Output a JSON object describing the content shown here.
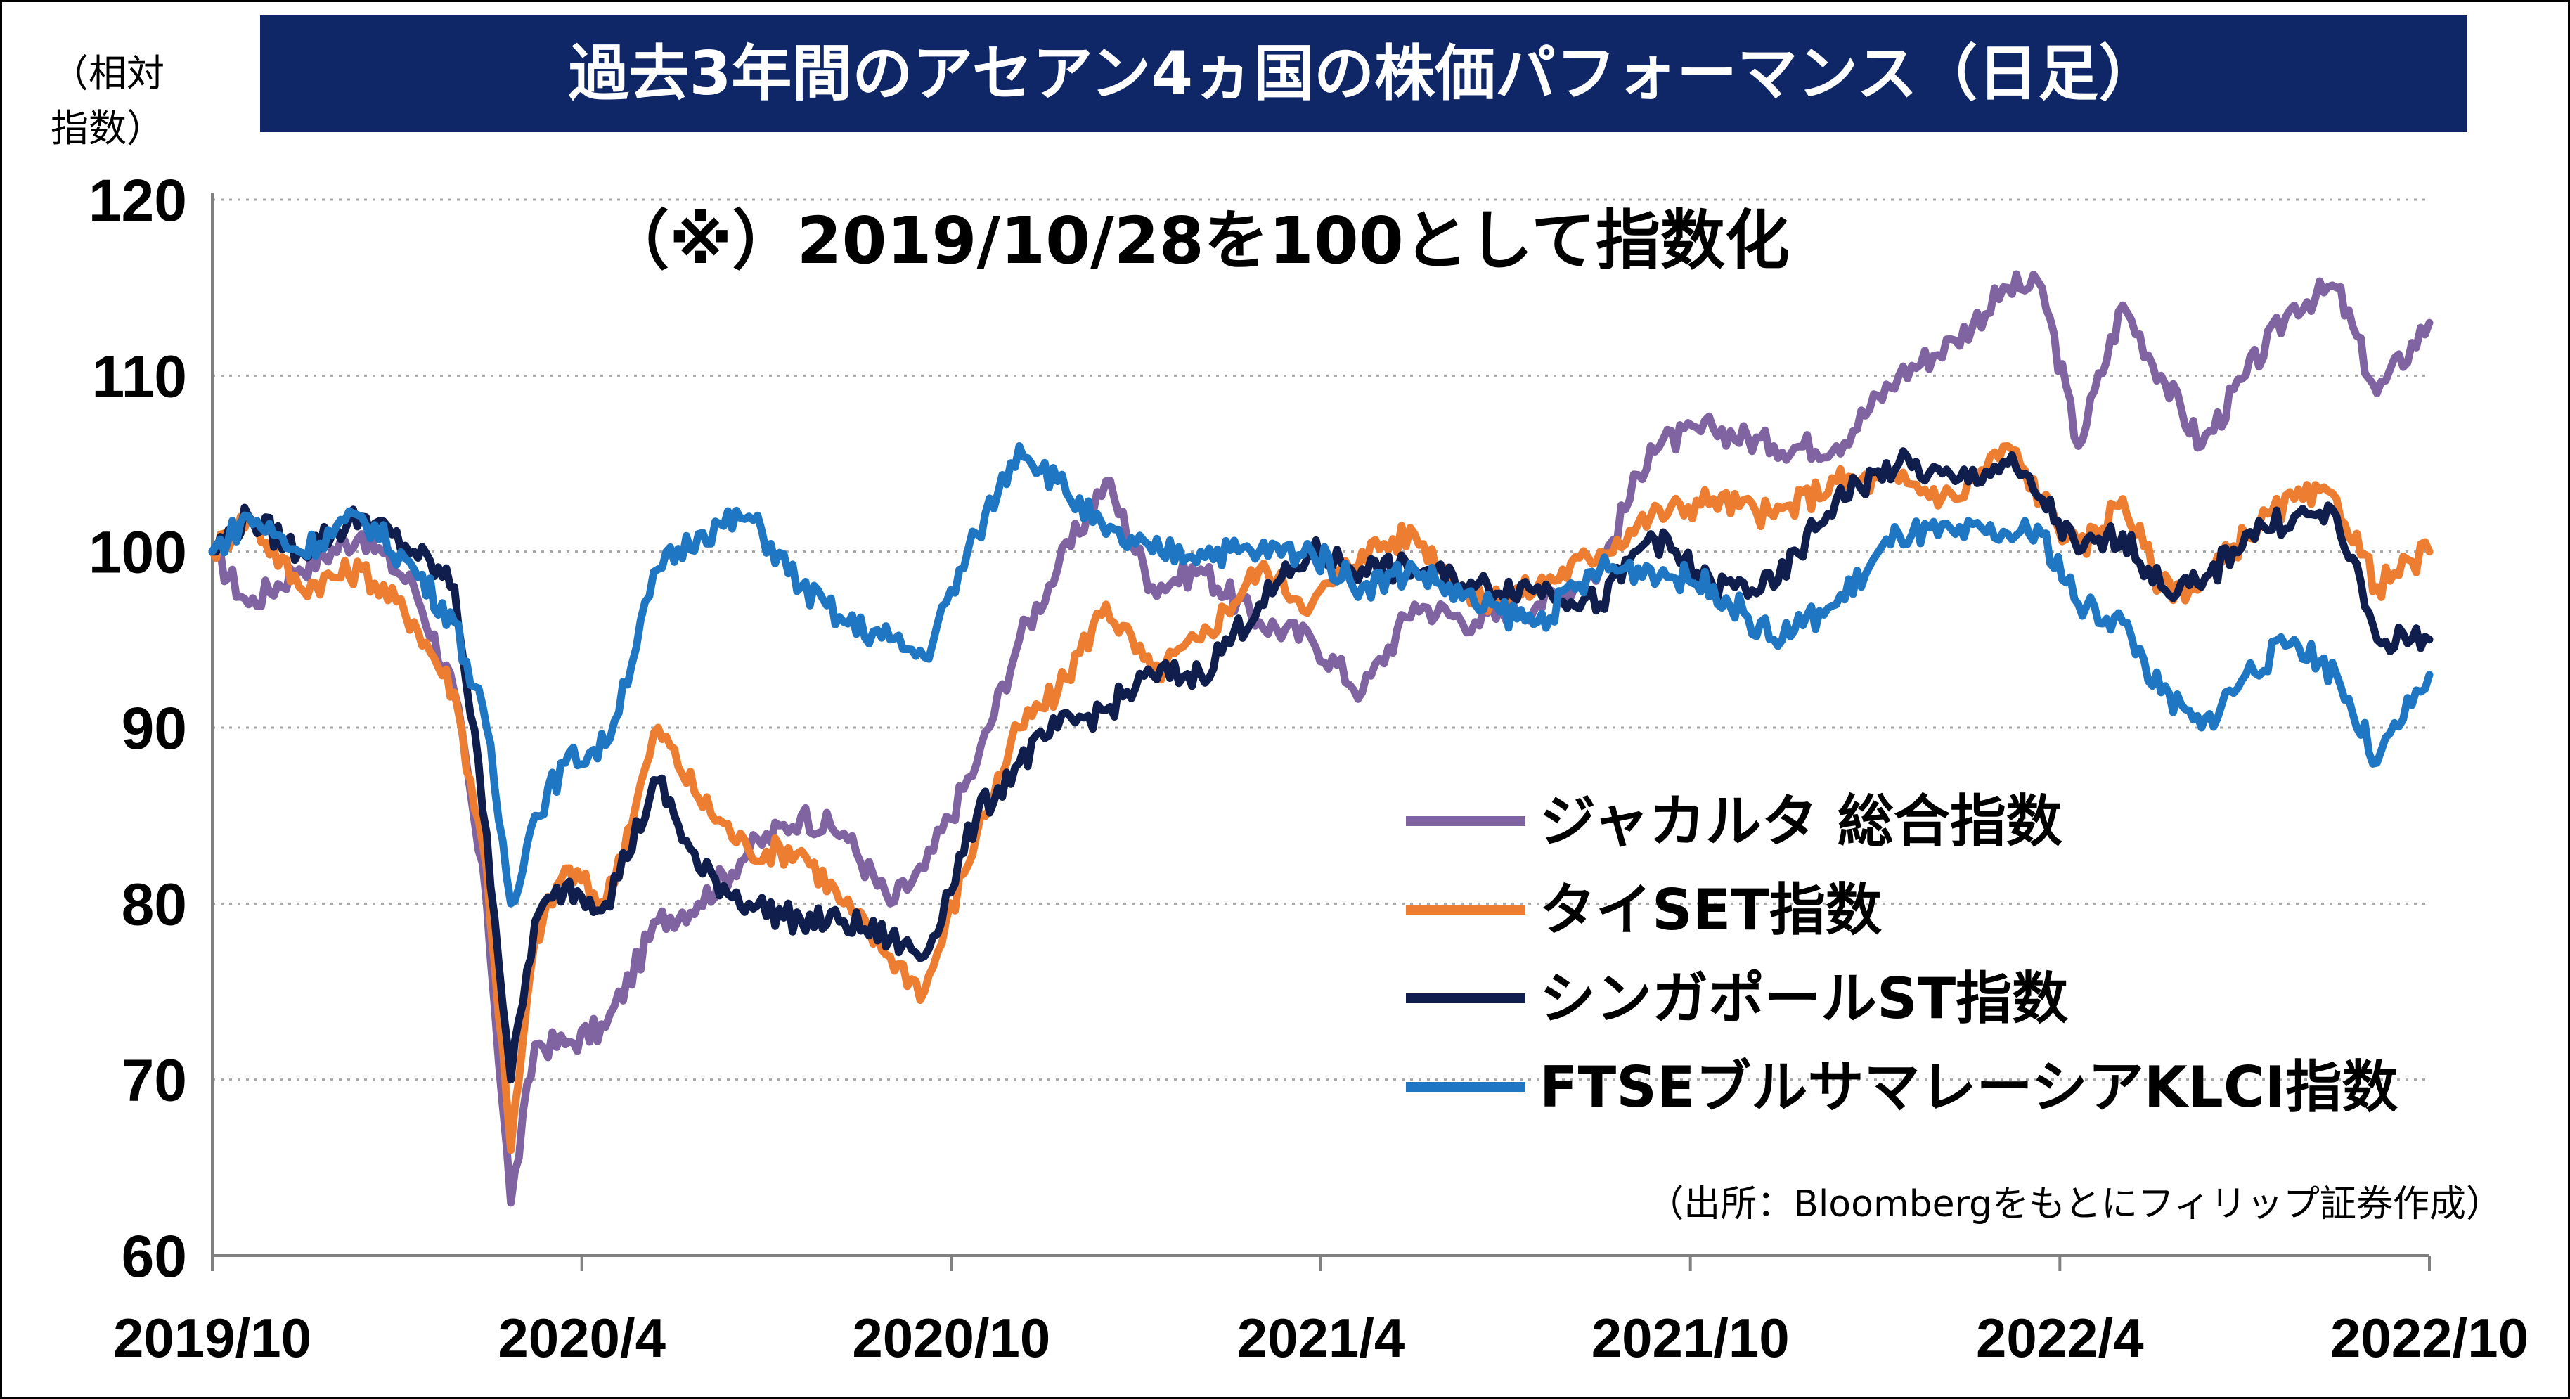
{
  "chart_data": {
    "type": "line",
    "title": "過去3年間のアセアン4ヵ国の株価パフォーマンス（日足）",
    "subtitle": "（※）2019/10/28を100として指数化",
    "ylabel": "（相対\n指数）",
    "source_note": "（出所：Bloombergをもとにフィリップ証券作成）",
    "ylim": [
      60,
      120
    ],
    "yticks": [
      "60",
      "70",
      "80",
      "90",
      "100",
      "110",
      "120"
    ],
    "xticks": [
      "2019/10",
      "2020/4",
      "2020/10",
      "2021/4",
      "2021/10",
      "2022/4",
      "2022/10"
    ],
    "x_range": [
      "2019-10-28",
      "2022-10-31"
    ],
    "grid": true,
    "legend_position": "bottom-right",
    "series": [
      {
        "name": "ジャカルタ 総合指数",
        "color": "#8064a2",
        "points": [
          [
            "2019-10-28",
            100
          ],
          [
            "2019-11-15",
            97
          ],
          [
            "2019-12-10",
            99
          ],
          [
            "2020-01-10",
            101
          ],
          [
            "2020-02-05",
            98
          ],
          [
            "2020-02-25",
            92
          ],
          [
            "2020-03-12",
            80
          ],
          [
            "2020-03-24",
            63
          ],
          [
            "2020-04-05",
            72
          ],
          [
            "2020-04-20",
            72
          ],
          [
            "2020-05-10",
            73
          ],
          [
            "2020-06-05",
            79
          ],
          [
            "2020-06-25",
            80
          ],
          [
            "2020-07-20",
            83
          ],
          [
            "2020-08-15",
            85
          ],
          [
            "2020-09-05",
            84
          ],
          [
            "2020-09-28",
            80
          ],
          [
            "2020-10-15",
            82
          ],
          [
            "2020-11-10",
            88
          ],
          [
            "2020-12-01",
            95
          ],
          [
            "2020-12-20",
            99
          ],
          [
            "2021-01-13",
            104
          ],
          [
            "2021-02-05",
            98
          ],
          [
            "2021-03-01",
            99
          ],
          [
            "2021-03-30",
            96
          ],
          [
            "2021-04-25",
            95
          ],
          [
            "2021-05-20",
            92
          ],
          [
            "2021-06-15",
            97
          ],
          [
            "2021-07-15",
            96
          ],
          [
            "2021-08-15",
            97
          ],
          [
            "2021-09-15",
            99
          ],
          [
            "2021-10-10",
            106
          ],
          [
            "2021-11-10",
            107
          ],
          [
            "2021-12-10",
            106
          ],
          [
            "2022-01-10",
            106
          ],
          [
            "2022-02-10",
            110
          ],
          [
            "2022-03-10",
            112
          ],
          [
            "2022-04-05",
            115
          ],
          [
            "2022-04-22",
            115
          ],
          [
            "2022-05-10",
            106
          ],
          [
            "2022-06-01",
            114
          ],
          [
            "2022-06-20",
            110
          ],
          [
            "2022-07-10",
            106
          ],
          [
            "2022-08-01",
            110
          ],
          [
            "2022-08-25",
            114
          ],
          [
            "2022-09-15",
            115
          ],
          [
            "2022-10-05",
            109
          ],
          [
            "2022-10-31",
            113
          ]
        ]
      },
      {
        "name": "タイSET指数",
        "color": "#ed7d31",
        "points": [
          [
            "2019-10-28",
            100
          ],
          [
            "2019-11-15",
            102
          ],
          [
            "2019-12-10",
            98
          ],
          [
            "2020-01-10",
            99
          ],
          [
            "2020-02-05",
            96
          ],
          [
            "2020-02-25",
            92
          ],
          [
            "2020-03-12",
            82
          ],
          [
            "2020-03-24",
            66
          ],
          [
            "2020-04-05",
            78
          ],
          [
            "2020-04-20",
            82
          ],
          [
            "2020-05-10",
            80
          ],
          [
            "2020-06-05",
            90
          ],
          [
            "2020-06-25",
            86
          ],
          [
            "2020-07-20",
            83
          ],
          [
            "2020-08-15",
            83
          ],
          [
            "2020-09-05",
            80
          ],
          [
            "2020-09-28",
            77
          ],
          [
            "2020-10-15",
            75
          ],
          [
            "2020-11-10",
            84
          ],
          [
            "2020-12-01",
            90
          ],
          [
            "2020-12-20",
            92
          ],
          [
            "2021-01-13",
            97
          ],
          [
            "2021-02-05",
            93
          ],
          [
            "2021-03-01",
            95
          ],
          [
            "2021-03-30",
            99
          ],
          [
            "2021-04-25",
            97
          ],
          [
            "2021-05-20",
            100
          ],
          [
            "2021-06-15",
            101
          ],
          [
            "2021-07-15",
            97
          ],
          [
            "2021-08-15",
            98
          ],
          [
            "2021-09-15",
            100
          ],
          [
            "2021-10-10",
            102
          ],
          [
            "2021-11-10",
            103
          ],
          [
            "2021-12-10",
            102
          ],
          [
            "2022-01-10",
            104
          ],
          [
            "2022-02-10",
            104
          ],
          [
            "2022-03-10",
            103
          ],
          [
            "2022-04-05",
            106
          ],
          [
            "2022-04-22",
            103
          ],
          [
            "2022-05-10",
            100
          ],
          [
            "2022-06-01",
            103
          ],
          [
            "2022-06-20",
            98
          ],
          [
            "2022-07-10",
            98
          ],
          [
            "2022-08-01",
            101
          ],
          [
            "2022-08-25",
            103
          ],
          [
            "2022-09-15",
            103
          ],
          [
            "2022-10-05",
            98
          ],
          [
            "2022-10-31",
            100
          ]
        ]
      },
      {
        "name": "シンガポールST指数",
        "color": "#0f1e4c",
        "points": [
          [
            "2019-10-28",
            100
          ],
          [
            "2019-11-15",
            102
          ],
          [
            "2019-12-10",
            100
          ],
          [
            "2020-01-10",
            102
          ],
          [
            "2020-02-05",
            100
          ],
          [
            "2020-02-25",
            98
          ],
          [
            "2020-03-12",
            84
          ],
          [
            "2020-03-24",
            70
          ],
          [
            "2020-04-05",
            79
          ],
          [
            "2020-04-20",
            81
          ],
          [
            "2020-05-10",
            80
          ],
          [
            "2020-06-05",
            87
          ],
          [
            "2020-06-25",
            82
          ],
          [
            "2020-07-20",
            80
          ],
          [
            "2020-08-15",
            79
          ],
          [
            "2020-09-05",
            79
          ],
          [
            "2020-09-28",
            78
          ],
          [
            "2020-10-15",
            77
          ],
          [
            "2020-11-10",
            85
          ],
          [
            "2020-12-01",
            88
          ],
          [
            "2020-12-20",
            90
          ],
          [
            "2021-01-13",
            91
          ],
          [
            "2021-02-05",
            93
          ],
          [
            "2021-03-01",
            93
          ],
          [
            "2021-03-30",
            97
          ],
          [
            "2021-04-25",
            100
          ],
          [
            "2021-05-20",
            99
          ],
          [
            "2021-06-15",
            99
          ],
          [
            "2021-07-15",
            98
          ],
          [
            "2021-08-15",
            98
          ],
          [
            "2021-09-15",
            97
          ],
          [
            "2021-10-10",
            101
          ],
          [
            "2021-11-10",
            98
          ],
          [
            "2021-12-10",
            98
          ],
          [
            "2022-01-10",
            103
          ],
          [
            "2022-02-10",
            105
          ],
          [
            "2022-03-10",
            104
          ],
          [
            "2022-04-05",
            105
          ],
          [
            "2022-04-22",
            103
          ],
          [
            "2022-05-10",
            100
          ],
          [
            "2022-06-01",
            101
          ],
          [
            "2022-06-20",
            98
          ],
          [
            "2022-07-10",
            98
          ],
          [
            "2022-08-01",
            101
          ],
          [
            "2022-08-25",
            102
          ],
          [
            "2022-09-15",
            102
          ],
          [
            "2022-10-05",
            95
          ],
          [
            "2022-10-31",
            95
          ]
        ]
      },
      {
        "name": "FTSEブルサマレーシアKLCI指数",
        "color": "#1f77c4",
        "points": [
          [
            "2019-10-28",
            100
          ],
          [
            "2019-11-15",
            102
          ],
          [
            "2019-12-10",
            100
          ],
          [
            "2020-01-10",
            102
          ],
          [
            "2020-02-05",
            99
          ],
          [
            "2020-02-25",
            96
          ],
          [
            "2020-03-12",
            90
          ],
          [
            "2020-03-24",
            80
          ],
          [
            "2020-04-05",
            85
          ],
          [
            "2020-04-20",
            88
          ],
          [
            "2020-05-10",
            89
          ],
          [
            "2020-06-05",
            99
          ],
          [
            "2020-06-25",
            101
          ],
          [
            "2020-07-20",
            102
          ],
          [
            "2020-08-15",
            98
          ],
          [
            "2020-09-05",
            96
          ],
          [
            "2020-09-28",
            95
          ],
          [
            "2020-10-15",
            94
          ],
          [
            "2020-11-10",
            101
          ],
          [
            "2020-12-01",
            106
          ],
          [
            "2020-12-20",
            104
          ],
          [
            "2021-01-13",
            101
          ],
          [
            "2021-02-05",
            100
          ],
          [
            "2021-03-01",
            100
          ],
          [
            "2021-03-30",
            100
          ],
          [
            "2021-04-25",
            100
          ],
          [
            "2021-05-20",
            98
          ],
          [
            "2021-06-15",
            99
          ],
          [
            "2021-07-15",
            97
          ],
          [
            "2021-08-15",
            96
          ],
          [
            "2021-09-15",
            99
          ],
          [
            "2021-10-10",
            99
          ],
          [
            "2021-11-10",
            98
          ],
          [
            "2021-12-10",
            95
          ],
          [
            "2022-01-10",
            97
          ],
          [
            "2022-02-10",
            101
          ],
          [
            "2022-03-10",
            101
          ],
          [
            "2022-04-05",
            101
          ],
          [
            "2022-04-22",
            101
          ],
          [
            "2022-05-10",
            97
          ],
          [
            "2022-06-01",
            96
          ],
          [
            "2022-06-20",
            92
          ],
          [
            "2022-07-10",
            90
          ],
          [
            "2022-08-01",
            93
          ],
          [
            "2022-08-25",
            95
          ],
          [
            "2022-09-15",
            93
          ],
          [
            "2022-10-05",
            88
          ],
          [
            "2022-10-31",
            93
          ]
        ]
      }
    ]
  }
}
